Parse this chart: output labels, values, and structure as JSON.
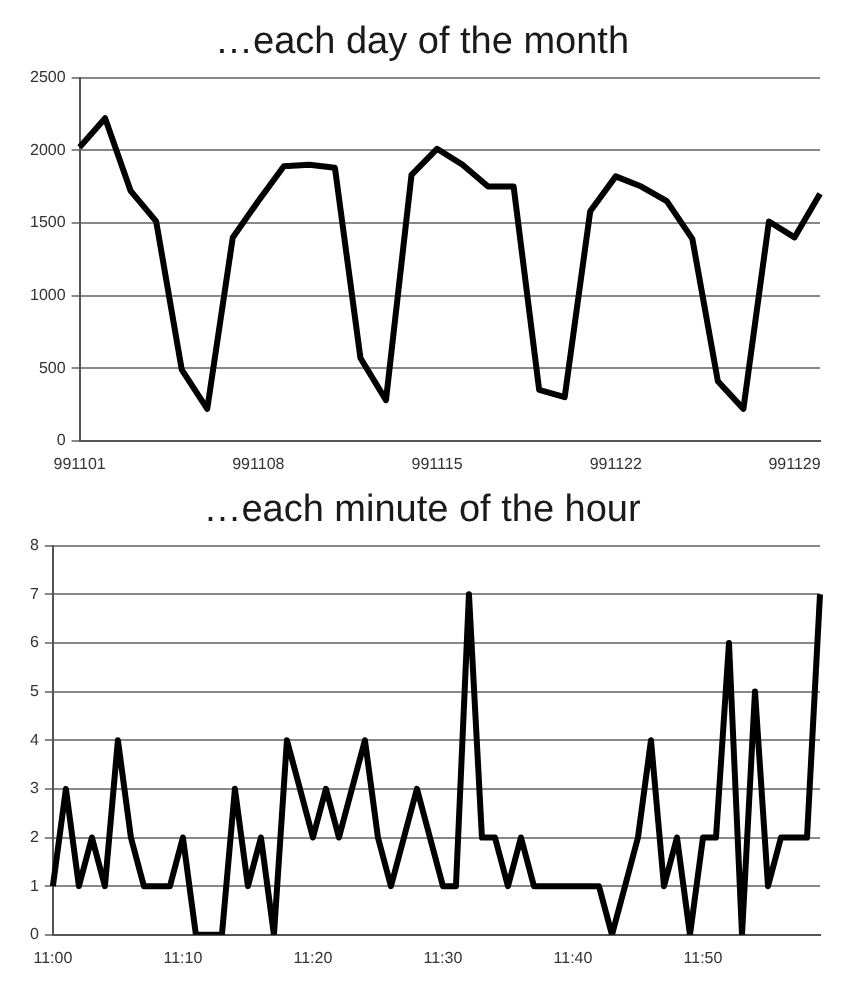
{
  "chart_data": [
    {
      "type": "line",
      "title": "…each day of the month",
      "categories": [
        "991101",
        null,
        null,
        null,
        null,
        null,
        null,
        "991108",
        null,
        null,
        null,
        null,
        null,
        null,
        "991115",
        null,
        null,
        null,
        null,
        null,
        null,
        "991122",
        null,
        null,
        null,
        null,
        null,
        null,
        "991129",
        null
      ],
      "series": [
        {
          "color": "#000000",
          "values": [
            2020,
            2220,
            1720,
            1510,
            490,
            220,
            1400,
            1650,
            1890,
            1900,
            1880,
            570,
            280,
            1830,
            2010,
            1900,
            1750,
            1750,
            350,
            300,
            1580,
            1820,
            1750,
            1650,
            1390,
            410,
            220,
            1510,
            1400,
            1700
          ]
        }
      ],
      "ylim": [
        0,
        2500
      ],
      "yticks": [
        0,
        500,
        1000,
        1500,
        2000,
        2500
      ],
      "grid": "y"
    },
    {
      "type": "line",
      "title": "…each minute of the hour",
      "categories": [
        "11:00",
        null,
        null,
        null,
        null,
        null,
        null,
        null,
        null,
        null,
        "11:10",
        null,
        null,
        null,
        null,
        null,
        null,
        null,
        null,
        null,
        "11:20",
        null,
        null,
        null,
        null,
        null,
        null,
        null,
        null,
        null,
        "11:30",
        null,
        null,
        null,
        null,
        null,
        null,
        null,
        null,
        null,
        "11:40",
        null,
        null,
        null,
        null,
        null,
        null,
        null,
        null,
        null,
        "11:50",
        null,
        null,
        null,
        null,
        null,
        null,
        null,
        null,
        null
      ],
      "series": [
        {
          "color": "#000000",
          "values": [
            1,
            3,
            1,
            2,
            1,
            4,
            2,
            1,
            1,
            1,
            2,
            0,
            0,
            0,
            3,
            1,
            2,
            0,
            4,
            3,
            2,
            3,
            2,
            3,
            4,
            2,
            1,
            2,
            3,
            2,
            1,
            1,
            7,
            2,
            2,
            1,
            2,
            1,
            1,
            1,
            1,
            1,
            1,
            0,
            1,
            2,
            4,
            1,
            2,
            0,
            2,
            2,
            6,
            0,
            5,
            1,
            2,
            2,
            2,
            7
          ]
        }
      ],
      "ylim": [
        0,
        8
      ],
      "yticks": [
        0,
        1,
        2,
        3,
        4,
        5,
        6,
        7,
        8
      ],
      "grid": "y"
    }
  ]
}
